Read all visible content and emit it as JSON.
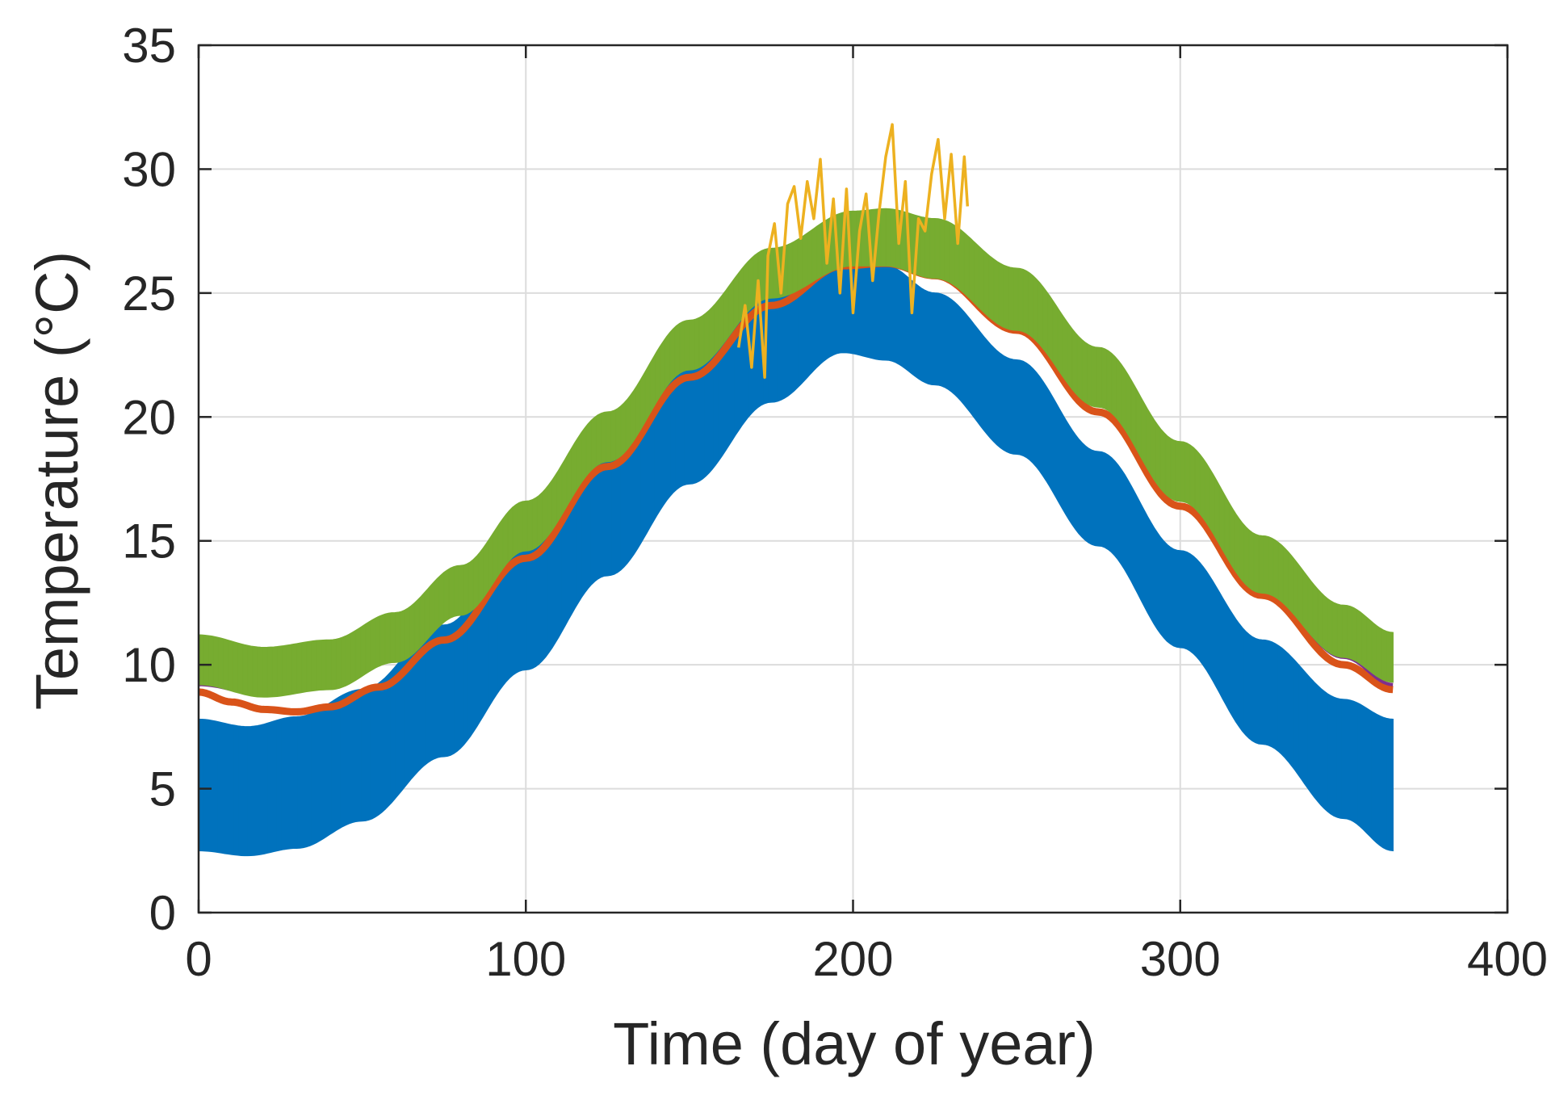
{
  "chart_data": {
    "type": "line",
    "title": "",
    "xlabel": "Time (day of year)",
    "ylabel": "Temperature (°C)",
    "xlim": [
      0,
      400
    ],
    "ylim": [
      0,
      35
    ],
    "xticks": [
      0,
      100,
      200,
      300,
      400
    ],
    "yticks": [
      0,
      5,
      10,
      15,
      20,
      25,
      30,
      35
    ],
    "xtick_labels": [
      "0",
      "100",
      "200",
      "300",
      "400"
    ],
    "ytick_labels": [
      "0",
      "5",
      "10",
      "15",
      "20",
      "25",
      "30",
      "35"
    ],
    "grid": true,
    "legend": "none",
    "series": [
      {
        "name": "blue band",
        "color": "#0072BD",
        "style": "band",
        "x": [
          0,
          15,
          30,
          50,
          75,
          100,
          125,
          150,
          175,
          197,
          210,
          225,
          250,
          275,
          300,
          325,
          350,
          365
        ],
        "lower": [
          2.5,
          2.3,
          2.6,
          3.7,
          6.3,
          9.8,
          13.6,
          17.3,
          20.6,
          22.6,
          22.3,
          21.3,
          18.5,
          14.8,
          10.7,
          6.8,
          3.8,
          2.5
        ],
        "upper": [
          7.8,
          7.5,
          7.9,
          9.0,
          11.6,
          15.1,
          18.9,
          22.6,
          25.4,
          26.3,
          26.1,
          25.0,
          22.3,
          18.6,
          14.6,
          11.0,
          8.6,
          7.8
        ]
      },
      {
        "name": "orange line",
        "color": "#D95319",
        "style": "line",
        "x": [
          0,
          10,
          20,
          30,
          40,
          55,
          75,
          100,
          125,
          150,
          175,
          197,
          210,
          225,
          250,
          275,
          300,
          325,
          350,
          365
        ],
        "y": [
          8.9,
          8.5,
          8.2,
          8.1,
          8.3,
          9.1,
          11.0,
          14.3,
          18.0,
          21.6,
          24.5,
          26.1,
          26.2,
          25.7,
          23.5,
          20.2,
          16.4,
          12.8,
          10.0,
          9.0
        ]
      },
      {
        "name": "purple line",
        "color": "#7E2F8E",
        "style": "line",
        "x": [
          0,
          20,
          40,
          60,
          80,
          100,
          125,
          150,
          175,
          200,
          210,
          225,
          250,
          275,
          300,
          325,
          350,
          365
        ],
        "y": [
          9.2,
          8.8,
          9.1,
          10.2,
          12.1,
          14.7,
          18.4,
          22.0,
          24.9,
          26.2,
          26.2,
          25.8,
          23.8,
          20.6,
          16.8,
          13.1,
          10.3,
          9.2
        ]
      },
      {
        "name": "green band",
        "color": "#77AC30",
        "style": "band",
        "x": [
          0,
          20,
          40,
          60,
          80,
          100,
          125,
          150,
          175,
          200,
          210,
          225,
          250,
          275,
          300,
          325,
          350,
          365
        ],
        "lower": [
          9.2,
          8.7,
          9.0,
          10.1,
          12.0,
          14.6,
          18.2,
          21.9,
          24.8,
          26.1,
          26.1,
          25.6,
          23.5,
          20.4,
          16.6,
          12.9,
          10.3,
          9.3
        ],
        "upper": [
          11.2,
          10.7,
          11.0,
          12.1,
          14.0,
          16.6,
          20.2,
          23.9,
          26.8,
          28.3,
          28.4,
          28.0,
          26.0,
          22.8,
          19.0,
          15.2,
          12.4,
          11.3
        ]
      },
      {
        "name": "yellow observations",
        "color": "#EDB120",
        "style": "line",
        "x": [
          165,
          167,
          169,
          171,
          173,
          174,
          176,
          178,
          180,
          182,
          184,
          186,
          188,
          190,
          192,
          194,
          196,
          198,
          200,
          202,
          204,
          206,
          208,
          210,
          212,
          214,
          216,
          218,
          220,
          222,
          224,
          226,
          228,
          230,
          232,
          234,
          235
        ],
        "y": [
          22.8,
          24.5,
          22.0,
          25.5,
          21.6,
          26.5,
          27.8,
          25.0,
          28.6,
          29.3,
          27.2,
          29.5,
          28.0,
          30.4,
          26.2,
          28.8,
          25.0,
          29.2,
          24.2,
          27.5,
          29.0,
          25.5,
          28.3,
          30.5,
          31.8,
          27.0,
          29.5,
          24.2,
          28.0,
          27.5,
          29.8,
          31.2,
          28.0,
          30.6,
          27.0,
          30.5,
          28.5
        ]
      }
    ]
  }
}
